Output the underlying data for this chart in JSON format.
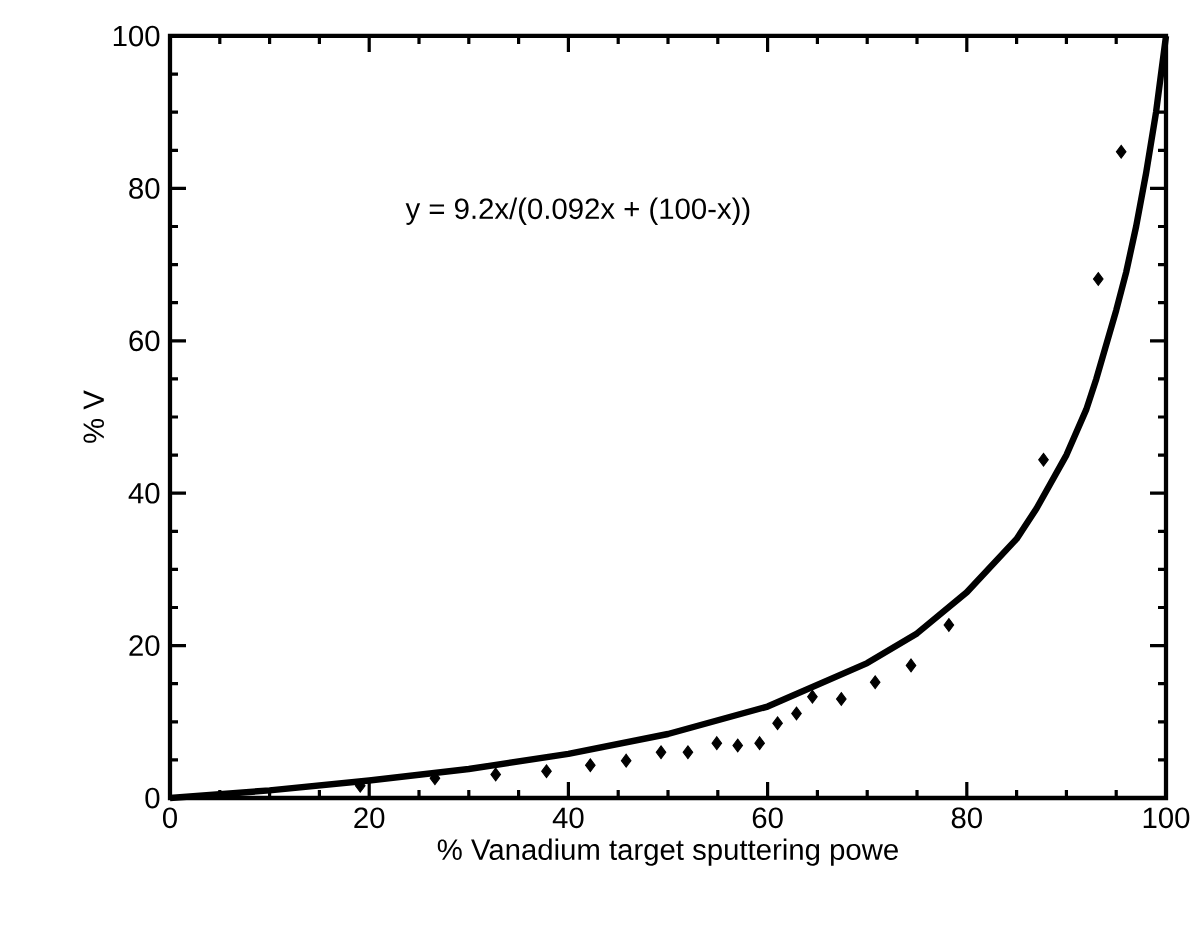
{
  "chart_data": {
    "type": "scatter",
    "xlabel": "% Vanadium target sputtering powe",
    "ylabel": "% V",
    "annotations": [
      "y = 9.2x/(0.092x + (100-x))"
    ],
    "xlim": [
      0,
      100
    ],
    "ylim": [
      0,
      100
    ],
    "xticks": [
      0,
      20,
      40,
      60,
      80,
      100
    ],
    "yticks": [
      0,
      20,
      40,
      60,
      80,
      100
    ],
    "grid": false,
    "series": [
      {
        "marker": "diamond",
        "color": "#000000",
        "x": [
          19.1,
          26.6,
          32.7,
          37.8,
          42.2,
          45.8,
          49.3,
          52,
          54.9,
          57,
          59.2,
          61,
          62.9,
          64.5,
          67.4,
          70.8,
          74.4,
          78.2,
          87.7,
          93.2,
          95.5
        ],
        "values": [
          1.6,
          2.6,
          3.1,
          3.5,
          4.3,
          4.9,
          6,
          6,
          7.2,
          6.9,
          7.2,
          9.8,
          11.1,
          13.3,
          13,
          15.2,
          17.4,
          22.7,
          44.4,
          68.1,
          84.8
        ]
      },
      {
        "type": "line",
        "marker": "none",
        "color": "#000000",
        "x": [
          0,
          10,
          20,
          30,
          40,
          50,
          60,
          70,
          75,
          80,
          85,
          87,
          90,
          92,
          93,
          95,
          96,
          97,
          98,
          99,
          100
        ],
        "values": [
          0,
          1,
          2.3,
          3.8,
          5.8,
          8.4,
          12,
          17.7,
          21.6,
          27,
          34,
          38,
          45,
          51,
          55,
          64,
          69,
          75,
          82,
          90,
          100
        ]
      }
    ]
  }
}
